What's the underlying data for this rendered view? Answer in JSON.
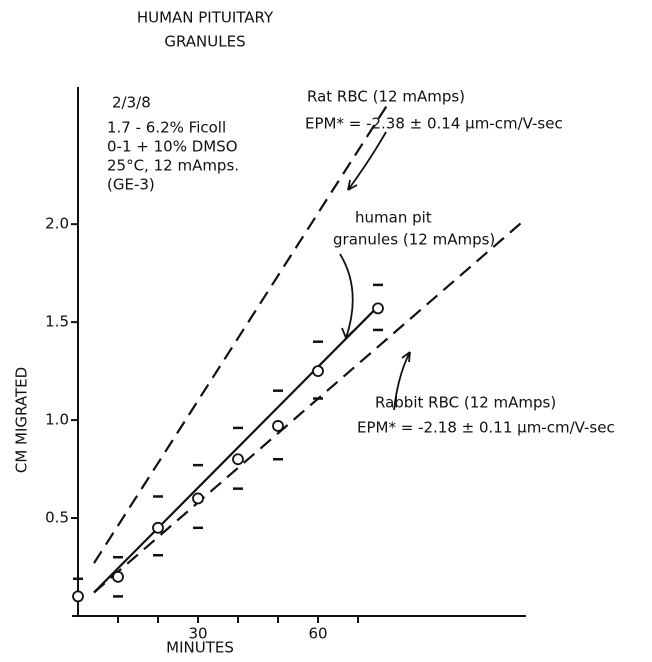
{
  "chart_data": {
    "type": "line",
    "title": [
      "HUMAN PITUITARY",
      "GRANULES"
    ],
    "xlabel": "MINUTES",
    "ylabel": "CM MIGRATED",
    "xlim": [
      0,
      112
    ],
    "ylim": [
      0,
      2.7
    ],
    "xticks": [
      30,
      60
    ],
    "xminorticks": [
      10,
      20,
      40,
      50,
      70
    ],
    "yticks": [
      0.5,
      {
        "value": 1.0,
        "label": "1.0"
      },
      1.5,
      {
        "value": 2.0,
        "label": "2.0"
      }
    ],
    "notes": [
      "2/3/8",
      "1.7 - 6.2% Ficoll",
      "0-1 + 10% DMSO",
      "25°C, 12 mAmps.",
      "(GE-3)"
    ],
    "points": {
      "x": [
        0,
        10,
        20,
        30,
        40,
        50,
        60,
        75
      ],
      "values": [
        0.1,
        0.2,
        0.45,
        0.6,
        0.8,
        0.97,
        1.25,
        1.57
      ],
      "high": [
        0.19,
        0.3,
        0.61,
        0.77,
        0.96,
        1.15,
        1.4,
        1.69
      ],
      "low": [
        null,
        0.1,
        0.31,
        0.45,
        0.65,
        0.8,
        1.11,
        1.46
      ]
    },
    "lines": [
      {
        "x": [
          4,
          75
        ],
        "values": [
          0.12,
          1.58
        ],
        "dashed": false,
        "label": [
          "human pit",
          "granules (12 mAmps)"
        ]
      },
      {
        "x": [
          4,
          78
        ],
        "values": [
          0.27,
          2.63
        ],
        "dashed": true,
        "label": [
          "Rat RBC (12 mAmps)",
          "EPM* = -2.38 ± 0.14 μm-cm/V-sec"
        ]
      },
      {
        "x": [
          4,
          111
        ],
        "values": [
          0.12,
          2.01
        ],
        "dashed": true,
        "label": [
          "Rabbit RBC (12 mAmps)",
          "EPM* = -2.18 ± 0.11 μm-cm/V-sec"
        ]
      }
    ]
  }
}
